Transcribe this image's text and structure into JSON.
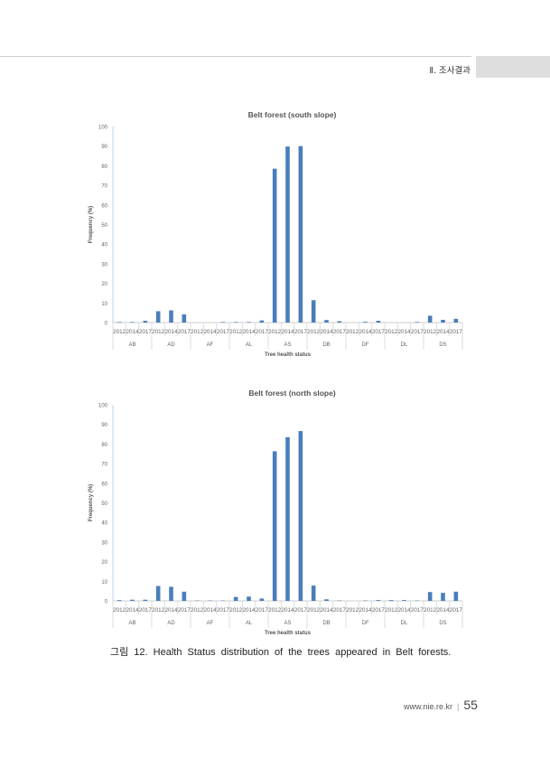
{
  "header": {
    "section": "Ⅱ. 조사결과"
  },
  "chart_data": [
    {
      "type": "bar",
      "title": "Belt forest (south slope)",
      "xlabel": "Tree health status",
      "ylabel": "Frequency (%)",
      "ylim": [
        0,
        100
      ],
      "yticks": [
        0,
        10,
        20,
        30,
        40,
        50,
        60,
        70,
        80,
        90,
        100
      ],
      "groups": [
        "AB",
        "AD",
        "AF",
        "AL",
        "AS",
        "DB",
        "DF",
        "DL",
        "DS"
      ],
      "years": [
        "2012",
        "2014",
        "2017"
      ],
      "color": "#4a7ebb",
      "values": [
        [
          0.3,
          0.3,
          0.9
        ],
        [
          5.8,
          6.2,
          4.2
        ],
        [
          0,
          0,
          0.3
        ],
        [
          0.3,
          0.3,
          1.1
        ],
        [
          78.5,
          89.8,
          90.0
        ],
        [
          11.4,
          1.3,
          0.7
        ],
        [
          0,
          0.4,
          0.9
        ],
        [
          0,
          0,
          0.3
        ],
        [
          3.5,
          1.4,
          1.9
        ]
      ]
    },
    {
      "type": "bar",
      "title": "Belt forest (north slope)",
      "xlabel": "Tree health status",
      "ylabel": "Frequency (%)",
      "ylim": [
        0,
        100
      ],
      "yticks": [
        0,
        10,
        20,
        30,
        40,
        50,
        60,
        70,
        80,
        90,
        100
      ],
      "groups": [
        "AB",
        "AD",
        "AF",
        "AL",
        "AS",
        "DB",
        "DF",
        "DL",
        "DS"
      ],
      "years": [
        "2012",
        "2014",
        "2017"
      ],
      "color": "#4a7ebb",
      "values": [
        [
          0.4,
          0.6,
          0.6
        ],
        [
          7.6,
          7.2,
          4.7
        ],
        [
          0.2,
          0.2,
          0.2
        ],
        [
          2.0,
          2.2,
          1.2
        ],
        [
          76.3,
          83.5,
          86.6
        ],
        [
          7.8,
          0.8,
          0.2
        ],
        [
          0,
          0.2,
          0.4
        ],
        [
          0.4,
          0.4,
          0.2
        ],
        [
          4.5,
          4.1,
          4.7
        ]
      ]
    }
  ],
  "caption": "그림 12. Health Status distribution of the trees appeared in Belt forests.",
  "footer": {
    "url": "www.nie.re.kr",
    "separator": "|",
    "page": "55"
  }
}
